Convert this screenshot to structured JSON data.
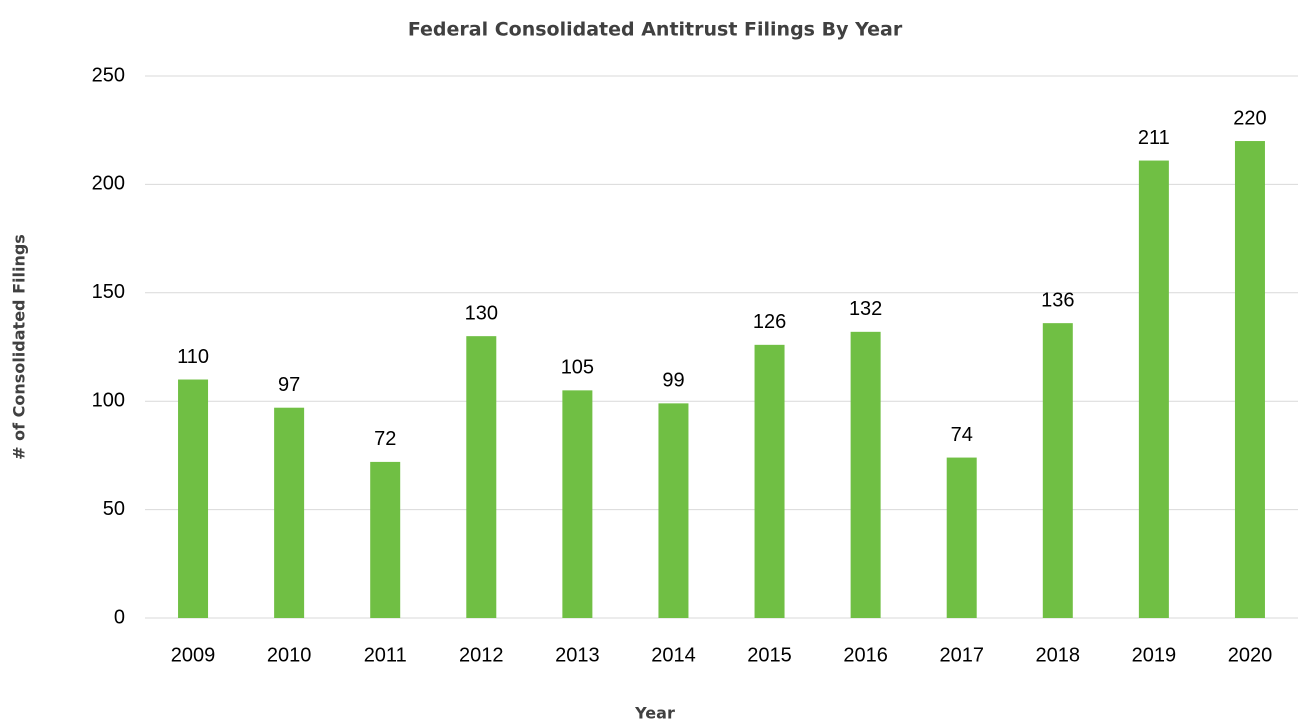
{
  "chart_data": {
    "type": "bar",
    "title": "Federal Consolidated Antitrust Filings By Year",
    "x_label": "Year",
    "y_label": "# of Consolidated Filings",
    "categories": [
      "2009",
      "2010",
      "2011",
      "2012",
      "2013",
      "2014",
      "2015",
      "2016",
      "2017",
      "2018",
      "2019",
      "2020"
    ],
    "values": [
      110,
      97,
      72,
      130,
      105,
      99,
      126,
      132,
      74,
      136,
      211,
      220
    ],
    "color": "#70bf44",
    "data_labels": true,
    "ylim": [
      0,
      250
    ],
    "yticks": [
      0,
      50,
      100,
      150,
      200,
      250
    ],
    "grid": true
  }
}
